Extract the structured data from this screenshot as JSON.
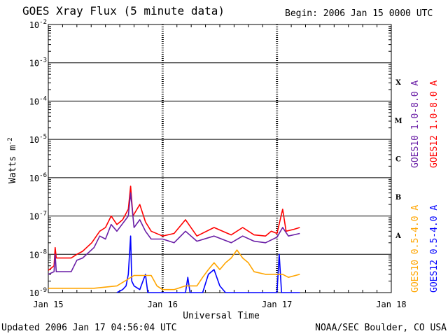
{
  "header": {
    "title": "GOES Xray Flux (5 minute data)",
    "begin": "Begin:  2006 Jan 15 0000 UTC"
  },
  "footer": {
    "updated": "Updated 2006 Jan 17 04:56:04 UTC",
    "credit": "NOAA/SEC Boulder, CO USA"
  },
  "chart_data": {
    "type": "line",
    "ylabel": "Watts m",
    "ylabel_exp": "-2",
    "xlabel": "Universal Time",
    "y_scale": "log",
    "ylim": [
      1e-09,
      0.01
    ],
    "y_tick_exponents": [
      "-9",
      "-8",
      "-7",
      "-6",
      "-5",
      "-4",
      "-3",
      "-2"
    ],
    "y_tick_base": "10",
    "x_unit": "days since 2006 Jan 15 0000 UTC",
    "xlim": [
      0,
      3
    ],
    "x_ticks": [
      {
        "x": 0,
        "label": "Jan 15"
      },
      {
        "x": 1,
        "label": "Jan 16"
      },
      {
        "x": 2,
        "label": "Jan 17"
      },
      {
        "x": 3,
        "label": "Jan 18"
      }
    ],
    "grid": "horizontal solid at each decade; dotted vertical at day boundaries",
    "flare_classes": [
      {
        "label": "X",
        "low": 0.0001
      },
      {
        "label": "M",
        "low": 1e-05
      },
      {
        "label": "C",
        "low": 1e-06
      },
      {
        "label": "B",
        "low": 1e-07
      },
      {
        "label": "A",
        "low": 1e-08
      }
    ],
    "series": [
      {
        "name": "GOES12 1.0-8.0 A",
        "color": "#ff0000",
        "points": [
          [
            0.0,
            3.8e-09
          ],
          [
            0.05,
            5e-09
          ],
          [
            0.06,
            1.5e-08
          ],
          [
            0.07,
            8e-09
          ],
          [
            0.2,
            8e-09
          ],
          [
            0.25,
            1e-08
          ],
          [
            0.3,
            1.2e-08
          ],
          [
            0.38,
            2e-08
          ],
          [
            0.45,
            4e-08
          ],
          [
            0.5,
            5e-08
          ],
          [
            0.55,
            1e-07
          ],
          [
            0.6,
            6e-08
          ],
          [
            0.65,
            8e-08
          ],
          [
            0.7,
            1.5e-07
          ],
          [
            0.72,
            6e-07
          ],
          [
            0.74,
            1e-07
          ],
          [
            0.8,
            2e-07
          ],
          [
            0.85,
            7e-08
          ],
          [
            0.9,
            4e-08
          ],
          [
            1.0,
            3e-08
          ],
          [
            1.1,
            3.5e-08
          ],
          [
            1.2,
            8e-08
          ],
          [
            1.3,
            3e-08
          ],
          [
            1.45,
            5e-08
          ],
          [
            1.6,
            3.2e-08
          ],
          [
            1.7,
            5e-08
          ],
          [
            1.8,
            3.2e-08
          ],
          [
            1.9,
            3e-08
          ],
          [
            1.95,
            4e-08
          ],
          [
            2.0,
            3.5e-08
          ],
          [
            2.05,
            1.5e-07
          ],
          [
            2.08,
            4e-08
          ],
          [
            2.15,
            4.5e-08
          ],
          [
            2.2,
            5e-08
          ]
        ]
      },
      {
        "name": "GOES10 1.0-8.0 A",
        "color": "#6a1fa6",
        "points": [
          [
            0.0,
            3e-09
          ],
          [
            0.05,
            3.5e-09
          ],
          [
            0.06,
            1e-08
          ],
          [
            0.07,
            3.5e-09
          ],
          [
            0.2,
            3.5e-09
          ],
          [
            0.25,
            7e-09
          ],
          [
            0.3,
            8e-09
          ],
          [
            0.4,
            1.5e-08
          ],
          [
            0.45,
            3e-08
          ],
          [
            0.5,
            2.5e-08
          ],
          [
            0.55,
            6e-08
          ],
          [
            0.6,
            4e-08
          ],
          [
            0.7,
            1e-07
          ],
          [
            0.72,
            4e-07
          ],
          [
            0.75,
            5e-08
          ],
          [
            0.8,
            8e-08
          ],
          [
            0.85,
            4e-08
          ],
          [
            0.9,
            2.5e-08
          ],
          [
            1.0,
            2.5e-08
          ],
          [
            1.1,
            2e-08
          ],
          [
            1.2,
            4e-08
          ],
          [
            1.3,
            2.2e-08
          ],
          [
            1.45,
            3e-08
          ],
          [
            1.6,
            2e-08
          ],
          [
            1.7,
            3e-08
          ],
          [
            1.8,
            2.2e-08
          ],
          [
            1.9,
            2e-08
          ],
          [
            2.0,
            2.8e-08
          ],
          [
            2.05,
            5e-08
          ],
          [
            2.1,
            3e-08
          ],
          [
            2.2,
            3.5e-08
          ]
        ]
      },
      {
        "name": "GOES12 0.5-4.0 A",
        "color": "#0000ff",
        "points": [
          [
            0.6,
            1e-09
          ],
          [
            0.65,
            1.2e-09
          ],
          [
            0.68,
            1.5e-09
          ],
          [
            0.7,
            3e-09
          ],
          [
            0.72,
            3e-08
          ],
          [
            0.73,
            2e-09
          ],
          [
            0.75,
            1.5e-09
          ],
          [
            0.8,
            1.2e-09
          ],
          [
            0.85,
            3e-09
          ],
          [
            0.87,
            1e-09
          ],
          [
            1.2,
            1e-09
          ],
          [
            1.22,
            2.5e-09
          ],
          [
            1.24,
            1e-09
          ],
          [
            1.35,
            1e-09
          ],
          [
            1.4,
            3e-09
          ],
          [
            1.45,
            4e-09
          ],
          [
            1.5,
            1.5e-09
          ],
          [
            1.55,
            1e-09
          ],
          [
            2.0,
            1e-09
          ],
          [
            2.02,
            1e-08
          ],
          [
            2.04,
            1e-09
          ],
          [
            2.2,
            1e-09
          ]
        ]
      },
      {
        "name": "GOES10 0.5-4.0 A",
        "color": "#ffa500",
        "points": [
          [
            0.0,
            1.3e-09
          ],
          [
            0.2,
            1.3e-09
          ],
          [
            0.4,
            1.3e-09
          ],
          [
            0.6,
            1.5e-09
          ],
          [
            0.75,
            2.8e-09
          ],
          [
            0.9,
            2.8e-09
          ],
          [
            0.95,
            1.5e-09
          ],
          [
            1.0,
            1.2e-09
          ],
          [
            1.1,
            1.2e-09
          ],
          [
            1.2,
            1.5e-09
          ],
          [
            1.3,
            1.5e-09
          ],
          [
            1.35,
            2.5e-09
          ],
          [
            1.4,
            4e-09
          ],
          [
            1.45,
            6e-09
          ],
          [
            1.5,
            4e-09
          ],
          [
            1.55,
            6e-09
          ],
          [
            1.6,
            8e-09
          ],
          [
            1.65,
            1.3e-08
          ],
          [
            1.7,
            8e-09
          ],
          [
            1.75,
            6e-09
          ],
          [
            1.8,
            3.5e-09
          ],
          [
            1.9,
            3e-09
          ],
          [
            2.0,
            3e-09
          ],
          [
            2.05,
            3e-09
          ],
          [
            2.1,
            2.5e-09
          ],
          [
            2.2,
            3e-09
          ]
        ]
      }
    ]
  }
}
